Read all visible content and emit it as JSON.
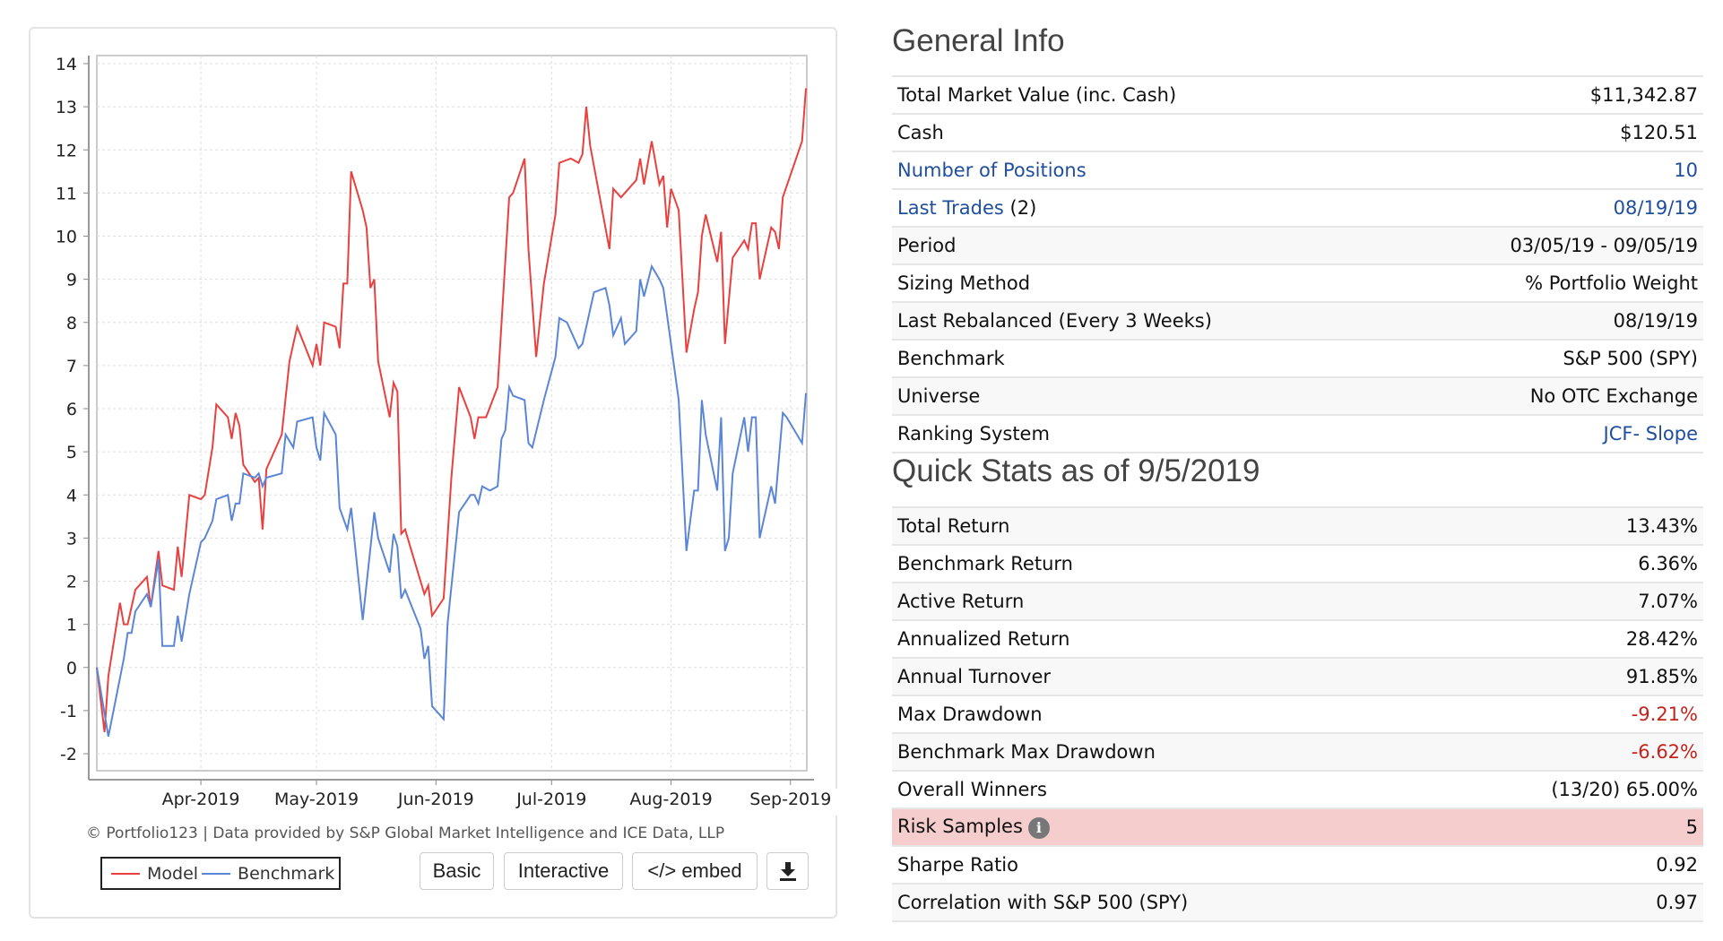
{
  "chart_data": {
    "type": "line",
    "title": "",
    "xlabel": "",
    "ylabel": "",
    "x_unit": "days since 03/05/2019",
    "xlim": [
      0,
      184
    ],
    "ylim": [
      -2,
      14
    ],
    "y_ticks": [
      -2,
      -1,
      0,
      1,
      2,
      3,
      4,
      5,
      6,
      7,
      8,
      9,
      10,
      11,
      12,
      13,
      14
    ],
    "x_ticks": [
      {
        "day": 27,
        "label": "Apr-2019"
      },
      {
        "day": 57,
        "label": "May-2019"
      },
      {
        "day": 88,
        "label": "Jun-2019"
      },
      {
        "day": 118,
        "label": "Jul-2019"
      },
      {
        "day": 149,
        "label": "Aug-2019"
      },
      {
        "day": 180,
        "label": "Sep-2019"
      }
    ],
    "grid": true,
    "legend": "bottom-left",
    "series": [
      {
        "name": "Model",
        "color": "#e8413f",
        "points": [
          [
            0,
            0
          ],
          [
            2,
            -1.5
          ],
          [
            3,
            -0.2
          ],
          [
            6,
            1.5
          ],
          [
            7,
            1.0
          ],
          [
            8,
            1.0
          ],
          [
            10,
            1.8
          ],
          [
            13,
            2.1
          ],
          [
            14,
            1.4
          ],
          [
            16,
            2.7
          ],
          [
            17,
            1.9
          ],
          [
            20,
            1.8
          ],
          [
            21,
            2.8
          ],
          [
            22,
            2.1
          ],
          [
            24,
            4.0
          ],
          [
            27,
            3.9
          ],
          [
            28,
            4.0
          ],
          [
            30,
            5.1
          ],
          [
            31,
            6.1
          ],
          [
            34,
            5.8
          ],
          [
            35,
            5.3
          ],
          [
            36,
            5.9
          ],
          [
            37,
            5.6
          ],
          [
            38,
            4.7
          ],
          [
            41,
            4.3
          ],
          [
            42,
            4.4
          ],
          [
            43,
            3.2
          ],
          [
            44,
            4.6
          ],
          [
            48,
            5.4
          ],
          [
            50,
            7.1
          ],
          [
            52,
            7.9
          ],
          [
            56,
            7.0
          ],
          [
            57,
            7.5
          ],
          [
            58,
            7.0
          ],
          [
            59,
            8.0
          ],
          [
            62,
            7.9
          ],
          [
            63,
            7.4
          ],
          [
            64,
            8.9
          ],
          [
            65,
            8.9
          ],
          [
            66,
            11.5
          ],
          [
            69,
            10.6
          ],
          [
            70,
            10.2
          ],
          [
            71,
            8.8
          ],
          [
            72,
            9.0
          ],
          [
            73,
            7.1
          ],
          [
            76,
            5.8
          ],
          [
            77,
            6.6
          ],
          [
            78,
            6.4
          ],
          [
            79,
            3.1
          ],
          [
            80,
            3.2
          ],
          [
            85,
            1.7
          ],
          [
            86,
            1.9
          ],
          [
            87,
            1.2
          ],
          [
            90,
            1.6
          ],
          [
            92,
            4.4
          ],
          [
            94,
            6.5
          ],
          [
            97,
            5.8
          ],
          [
            98,
            5.3
          ],
          [
            99,
            5.8
          ],
          [
            101,
            5.8
          ],
          [
            104,
            6.5
          ],
          [
            107,
            10.9
          ],
          [
            108,
            11.0
          ],
          [
            111,
            11.8
          ],
          [
            112,
            9.7
          ],
          [
            114,
            7.2
          ],
          [
            116,
            8.9
          ],
          [
            119,
            10.5
          ],
          [
            120,
            11.7
          ],
          [
            123,
            11.8
          ],
          [
            125,
            11.7
          ],
          [
            126,
            11.9
          ],
          [
            127,
            13.0
          ],
          [
            128,
            12.1
          ],
          [
            133,
            9.7
          ],
          [
            134,
            11.1
          ],
          [
            136,
            10.9
          ],
          [
            140,
            11.3
          ],
          [
            141,
            11.8
          ],
          [
            142,
            11.2
          ],
          [
            144,
            12.2
          ],
          [
            146,
            11.2
          ],
          [
            147,
            11.4
          ],
          [
            148,
            10.2
          ],
          [
            149,
            11.1
          ],
          [
            151,
            10.6
          ],
          [
            153,
            7.3
          ],
          [
            155,
            8.3
          ],
          [
            156,
            8.7
          ],
          [
            157,
            10.0
          ],
          [
            158,
            10.5
          ],
          [
            161,
            9.4
          ],
          [
            162,
            10.1
          ],
          [
            163,
            7.5
          ],
          [
            165,
            9.5
          ],
          [
            168,
            9.9
          ],
          [
            169,
            9.7
          ],
          [
            170,
            10.3
          ],
          [
            171,
            10.3
          ],
          [
            172,
            9.0
          ],
          [
            175,
            10.2
          ],
          [
            176,
            10.1
          ],
          [
            177,
            9.7
          ],
          [
            178,
            10.9
          ],
          [
            183,
            12.2
          ],
          [
            184,
            13.43
          ]
        ]
      },
      {
        "name": "Benchmark",
        "color": "#5b86d6",
        "points": [
          [
            0,
            0
          ],
          [
            3,
            -1.6
          ],
          [
            7,
            0.2
          ],
          [
            8,
            0.8
          ],
          [
            9,
            0.8
          ],
          [
            10,
            1.3
          ],
          [
            13,
            1.7
          ],
          [
            14,
            1.4
          ],
          [
            16,
            2.5
          ],
          [
            17,
            0.5
          ],
          [
            20,
            0.5
          ],
          [
            21,
            1.2
          ],
          [
            22,
            0.6
          ],
          [
            24,
            1.7
          ],
          [
            27,
            2.9
          ],
          [
            28,
            3.0
          ],
          [
            30,
            3.4
          ],
          [
            31,
            3.9
          ],
          [
            34,
            4.0
          ],
          [
            35,
            3.4
          ],
          [
            36,
            3.8
          ],
          [
            37,
            3.8
          ],
          [
            38,
            4.5
          ],
          [
            41,
            4.4
          ],
          [
            42,
            4.5
          ],
          [
            43,
            4.2
          ],
          [
            44,
            4.4
          ],
          [
            48,
            4.5
          ],
          [
            49,
            5.4
          ],
          [
            51,
            5.1
          ],
          [
            52,
            5.7
          ],
          [
            56,
            5.8
          ],
          [
            57,
            5.1
          ],
          [
            58,
            4.8
          ],
          [
            59,
            5.9
          ],
          [
            62,
            5.4
          ],
          [
            63,
            3.7
          ],
          [
            65,
            3.2
          ],
          [
            66,
            3.7
          ],
          [
            69,
            1.1
          ],
          [
            72,
            3.6
          ],
          [
            73,
            3.0
          ],
          [
            76,
            2.2
          ],
          [
            77,
            3.1
          ],
          [
            78,
            2.8
          ],
          [
            79,
            1.6
          ],
          [
            80,
            1.8
          ],
          [
            84,
            0.9
          ],
          [
            85,
            0.2
          ],
          [
            86,
            0.5
          ],
          [
            87,
            -0.9
          ],
          [
            90,
            -1.2
          ],
          [
            91,
            1.0
          ],
          [
            94,
            3.6
          ],
          [
            97,
            4.0
          ],
          [
            98,
            4.0
          ],
          [
            99,
            3.8
          ],
          [
            100,
            4.2
          ],
          [
            102,
            4.1
          ],
          [
            104,
            4.2
          ],
          [
            105,
            5.3
          ],
          [
            106,
            5.5
          ],
          [
            107,
            6.5
          ],
          [
            108,
            6.3
          ],
          [
            111,
            6.2
          ],
          [
            112,
            5.2
          ],
          [
            113,
            5.1
          ],
          [
            116,
            6.2
          ],
          [
            119,
            7.2
          ],
          [
            120,
            8.1
          ],
          [
            122,
            8.0
          ],
          [
            125,
            7.4
          ],
          [
            126,
            7.5
          ],
          [
            129,
            8.7
          ],
          [
            132,
            8.8
          ],
          [
            133,
            8.4
          ],
          [
            134,
            7.7
          ],
          [
            136,
            8.1
          ],
          [
            137,
            7.5
          ],
          [
            140,
            7.8
          ],
          [
            141,
            9.0
          ],
          [
            142,
            8.6
          ],
          [
            144,
            9.3
          ],
          [
            146,
            9.0
          ],
          [
            147,
            8.8
          ],
          [
            151,
            6.2
          ],
          [
            153,
            2.7
          ],
          [
            155,
            4.1
          ],
          [
            156,
            4.1
          ],
          [
            157,
            6.2
          ],
          [
            158,
            5.4
          ],
          [
            161,
            4.1
          ],
          [
            162,
            5.8
          ],
          [
            163,
            2.7
          ],
          [
            164,
            3.0
          ],
          [
            165,
            4.5
          ],
          [
            168,
            5.8
          ],
          [
            169,
            5.0
          ],
          [
            170,
            5.8
          ],
          [
            171,
            5.8
          ],
          [
            172,
            3.0
          ],
          [
            175,
            4.2
          ],
          [
            176,
            3.8
          ],
          [
            178,
            5.9
          ],
          [
            179,
            5.8
          ],
          [
            183,
            5.2
          ],
          [
            184,
            6.36
          ]
        ]
      }
    ]
  },
  "chart_footer": {
    "copyright": "© Portfolio123 | Data provided by S&P Global Market Intelligence and ICE Data, LLP",
    "legend_model": "Model",
    "legend_benchmark": "Benchmark",
    "btn_basic": "Basic",
    "btn_interactive": "Interactive",
    "btn_embed": "</> embed",
    "btn_download_icon": "download-icon"
  },
  "general_info": {
    "title": "General Info",
    "rows": [
      {
        "label": "Total Market Value (inc. Cash)",
        "value": "$11,342.87"
      },
      {
        "label": "Cash",
        "value": "$120.51"
      },
      {
        "label": "Number of Positions",
        "value": "10"
      },
      {
        "label": "Last Trades",
        "suffix": " (2)",
        "value": "08/19/19"
      },
      {
        "label": "Period",
        "value": "03/05/19 - 09/05/19"
      },
      {
        "label": "Sizing Method",
        "value": "% Portfolio Weight"
      },
      {
        "label": "Last Rebalanced (Every 3 Weeks)",
        "value": "08/19/19"
      },
      {
        "label": "Benchmark",
        "value": "S&P 500 (SPY)"
      },
      {
        "label": "Universe",
        "value": "No OTC Exchange"
      },
      {
        "label": "Ranking System",
        "value": "JCF- Slope"
      }
    ]
  },
  "quick_stats": {
    "title": "Quick Stats as of 9/5/2019",
    "rows": [
      {
        "label": "Total Return",
        "value": "13.43%"
      },
      {
        "label": "Benchmark Return",
        "value": "6.36%"
      },
      {
        "label": "Active Return",
        "value": "7.07%"
      },
      {
        "label": "Annualized Return",
        "value": "28.42%"
      },
      {
        "label": "Annual Turnover",
        "value": "91.85%"
      },
      {
        "label": "Max Drawdown",
        "value": "-9.21%"
      },
      {
        "label": "Benchmark Max Drawdown",
        "value": "-6.62%"
      },
      {
        "label": "Overall Winners",
        "value": "(13/20) 65.00%"
      },
      {
        "label": "Risk Samples",
        "info": "i",
        "value": "5"
      },
      {
        "label": "Sharpe Ratio",
        "value": "0.92"
      },
      {
        "label": "Correlation with S&P 500 (SPY)",
        "value": "0.97"
      }
    ]
  },
  "colors": {
    "link": "#1f4e9c",
    "negative": "#c4221c",
    "highlight": "#f5cdcd"
  }
}
